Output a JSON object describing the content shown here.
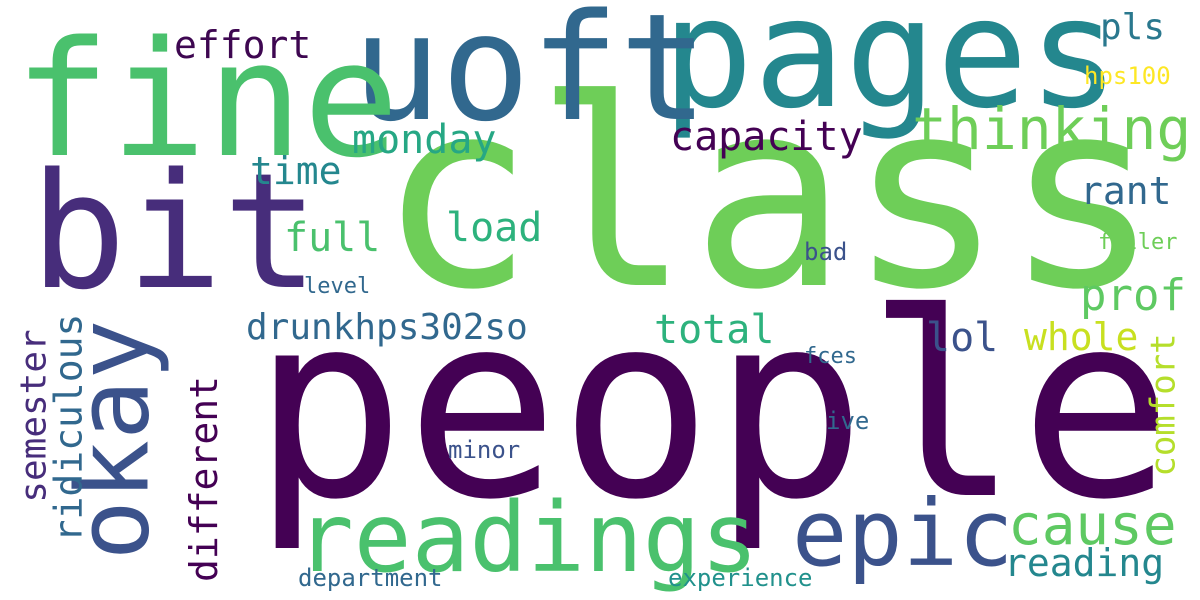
{
  "words": {
    "class": {
      "text": "class",
      "color": "#6ece58"
    },
    "people": {
      "text": "people",
      "color": "#440154"
    },
    "pages": {
      "text": "pages",
      "color": "#24878e"
    },
    "uoft": {
      "text": "uoft",
      "color": "#31688e"
    },
    "fine": {
      "text": "fine",
      "color": "#4ac16d"
    },
    "bit": {
      "text": "bit",
      "color": "#472d7b"
    },
    "okay": {
      "text": "okay",
      "color": "#3b528b"
    },
    "readings": {
      "text": "readings",
      "color": "#4ac16d"
    },
    "epic": {
      "text": "epic",
      "color": "#3b528b"
    },
    "thinking": {
      "text": "thinking",
      "color": "#6ece58"
    },
    "cause": {
      "text": "cause",
      "color": "#5ec962"
    },
    "effort": {
      "text": "effort",
      "color": "#3e0751"
    },
    "pls": {
      "text": "pls",
      "color": "#2a788e"
    },
    "hps100": {
      "text": "hps100",
      "color": "#fde725"
    },
    "monday": {
      "text": "monday",
      "color": "#26a784"
    },
    "capacity": {
      "text": "capacity",
      "color": "#440154"
    },
    "time": {
      "text": "time",
      "color": "#24878e"
    },
    "rant": {
      "text": "rant",
      "color": "#31688e"
    },
    "full": {
      "text": "full",
      "color": "#4ac16d"
    },
    "load": {
      "text": "load",
      "color": "#2db27d"
    },
    "filler": {
      "text": "filler",
      "color": "#6ece58"
    },
    "bad": {
      "text": "bad",
      "color": "#3b528b"
    },
    "level": {
      "text": "level",
      "color": "#31688e"
    },
    "prof": {
      "text": "prof",
      "color": "#5ec962"
    },
    "drunkhps302so": {
      "text": "drunkhps302so",
      "color": "#31688e"
    },
    "total": {
      "text": "total",
      "color": "#2db27d"
    },
    "lol": {
      "text": "lol",
      "color": "#3b528b"
    },
    "whole": {
      "text": "whole",
      "color": "#c8e020"
    },
    "fces": {
      "text": "fces",
      "color": "#31688e"
    },
    "ive": {
      "text": "ive",
      "color": "#31688e"
    },
    "minor": {
      "text": "minor",
      "color": "#3b528b"
    },
    "reading": {
      "text": "reading",
      "color": "#24878e"
    },
    "experience": {
      "text": "experience",
      "color": "#21918c"
    },
    "department": {
      "text": "department",
      "color": "#31688e"
    },
    "semester": {
      "text": "semester",
      "color": "#472d7b"
    },
    "ridiculous": {
      "text": "ridiculous",
      "color": "#31688e"
    },
    "different": {
      "text": "different",
      "color": "#440154"
    },
    "comfort": {
      "text": "comfort",
      "color": "#b5de2b"
    }
  }
}
